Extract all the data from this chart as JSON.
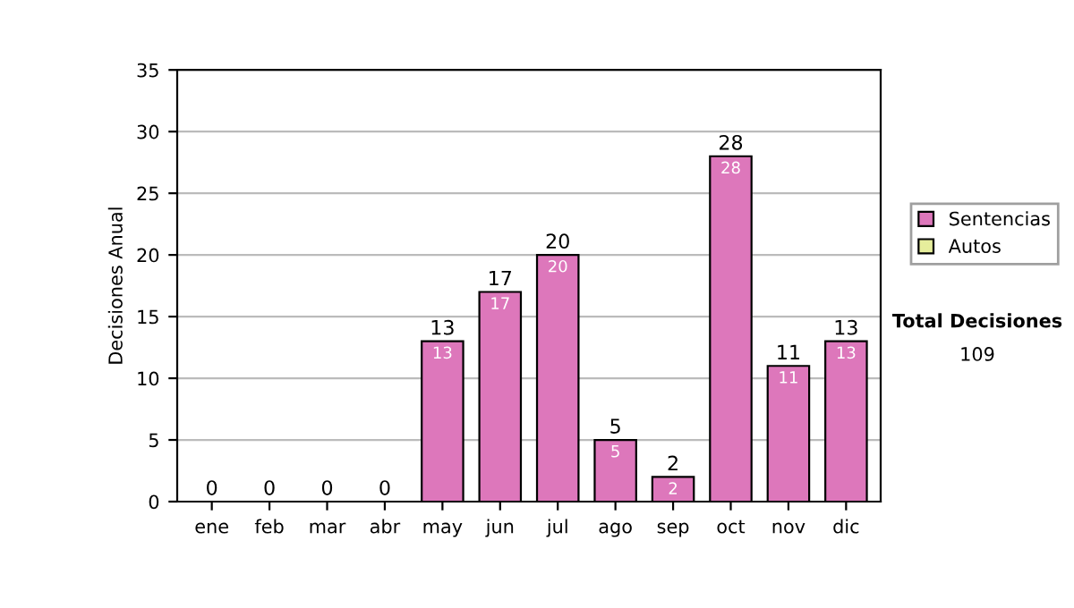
{
  "chart_data": {
    "type": "bar",
    "ylabel": "Decisiones Anual",
    "categories": [
      "ene",
      "feb",
      "mar",
      "abr",
      "may",
      "jun",
      "jul",
      "ago",
      "sep",
      "oct",
      "nov",
      "dic"
    ],
    "stacked": true,
    "series": [
      {
        "name": "Sentencias",
        "color": "#dd77bb",
        "values": [
          0,
          0,
          0,
          0,
          13,
          17,
          20,
          5,
          2,
          28,
          11,
          13
        ],
        "value_labels": [
          null,
          null,
          null,
          null,
          "13",
          "17",
          "20",
          "5",
          "2",
          "28",
          "11",
          "13"
        ]
      },
      {
        "name": "Autos",
        "color": "#e6ee9c",
        "values": [
          0,
          0,
          0,
          0,
          0,
          0,
          0,
          0,
          0,
          0,
          0,
          0
        ]
      }
    ],
    "totals": [
      "0",
      "0",
      "0",
      "0",
      "13",
      "17",
      "20",
      "5",
      "2",
      "28",
      "11",
      "13"
    ],
    "ylim": [
      0,
      35
    ],
    "yticks": [
      0,
      5,
      10,
      15,
      20,
      25,
      30,
      35
    ],
    "grid": "y",
    "legend": "right",
    "annotations": [
      "Total Decisiones",
      "109"
    ]
  }
}
